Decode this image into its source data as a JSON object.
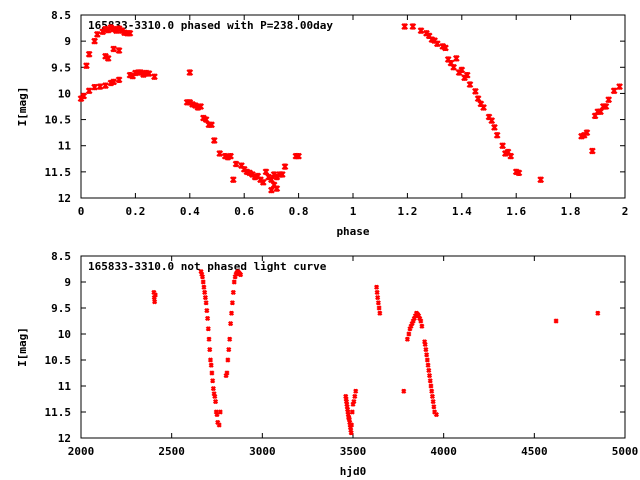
{
  "chart_data": [
    {
      "type": "scatter",
      "title": "165833-3310.0 phased with P=238.00day",
      "xlabel": "phase",
      "ylabel": "I[mag]",
      "xlim": [
        0,
        2
      ],
      "ylim": [
        8.5,
        12
      ],
      "y_inverted": true,
      "x_ticks": [
        "0",
        "0.2",
        "0.4",
        "0.6",
        "0.8",
        "1",
        "1.2",
        "1.4",
        "1.6",
        "1.8",
        "2"
      ],
      "y_ticks": [
        "8.5",
        "9",
        "9.5",
        "10",
        "10.5",
        "11",
        "11.5",
        "12"
      ],
      "marker_color": "#ff0000",
      "series": [
        {
          "x": [
            0.0,
            0.01,
            0.02,
            0.03,
            0.05,
            0.06,
            0.08,
            0.09,
            0.1,
            0.11,
            0.12,
            0.13,
            0.14,
            0.15,
            0.16,
            0.17,
            0.18,
            0.09,
            0.1,
            0.12,
            0.14,
            0.03,
            0.05,
            0.07,
            0.09,
            0.11,
            0.12,
            0.14,
            0.18,
            0.19,
            0.2,
            0.21,
            0.22,
            0.23,
            0.24,
            0.25,
            0.27,
            0.39,
            0.4,
            0.4,
            0.41,
            0.42,
            0.43,
            0.44,
            0.45,
            0.46,
            0.47,
            0.48,
            0.49,
            0.51,
            0.53,
            0.54,
            0.55,
            0.56,
            0.57,
            0.59,
            0.6,
            0.61,
            0.62,
            0.63,
            0.64,
            0.65,
            0.66,
            0.67,
            0.68,
            0.69,
            0.7,
            0.7,
            0.71,
            0.71,
            0.72,
            0.72,
            0.73,
            0.74,
            0.75,
            0.79,
            0.8,
            1.19,
            1.22,
            1.25,
            1.27,
            1.28,
            1.29,
            1.3,
            1.31,
            1.33,
            1.34,
            1.35,
            1.36,
            1.37,
            1.38,
            1.39,
            1.4,
            1.41,
            1.42,
            1.43,
            1.45,
            1.46,
            1.47,
            1.48,
            1.5,
            1.51,
            1.52,
            1.53,
            1.55,
            1.56,
            1.57,
            1.58,
            1.6,
            1.61,
            1.69,
            1.84,
            1.85,
            1.86,
            1.88,
            1.89,
            1.9,
            1.91,
            1.92,
            1.93,
            1.94,
            1.96,
            1.98
          ],
          "y": [
            10.1,
            10.05,
            9.47,
            9.25,
            9.0,
            8.87,
            8.82,
            8.77,
            8.79,
            8.74,
            8.77,
            8.8,
            8.76,
            8.8,
            8.84,
            8.85,
            8.85,
            9.29,
            9.33,
            9.15,
            9.18,
            9.95,
            9.88,
            9.87,
            9.85,
            9.8,
            9.78,
            9.74,
            9.65,
            9.67,
            9.61,
            9.6,
            9.6,
            9.64,
            9.61,
            9.62,
            9.68,
            10.17,
            10.17,
            9.6,
            10.21,
            10.23,
            10.27,
            10.25,
            10.47,
            10.5,
            10.6,
            10.6,
            10.9,
            11.15,
            11.2,
            11.22,
            11.2,
            11.65,
            11.35,
            11.38,
            11.45,
            11.5,
            11.52,
            11.55,
            11.6,
            11.58,
            11.65,
            11.7,
            11.5,
            11.6,
            11.85,
            11.65,
            11.75,
            11.55,
            11.6,
            11.82,
            11.55,
            11.55,
            11.4,
            11.2,
            11.2,
            8.72,
            8.72,
            8.8,
            8.85,
            8.9,
            8.97,
            8.99,
            9.05,
            9.1,
            9.13,
            9.35,
            9.42,
            9.5,
            9.33,
            9.6,
            9.55,
            9.7,
            9.65,
            9.83,
            9.96,
            10.1,
            10.2,
            10.27,
            10.45,
            10.52,
            10.65,
            10.8,
            11.0,
            11.15,
            11.12,
            11.2,
            11.5,
            11.52,
            11.65,
            10.82,
            10.8,
            10.75,
            11.1,
            10.43,
            10.35,
            10.35,
            10.25,
            10.25,
            10.12,
            9.95,
            9.87
          ]
        }
      ]
    },
    {
      "type": "scatter",
      "title": "165833-3310.0 not phased light curve",
      "xlabel": "hjd0",
      "ylabel": "I[mag]",
      "xlim": [
        2000,
        5000
      ],
      "ylim": [
        8.5,
        12
      ],
      "y_inverted": true,
      "x_ticks": [
        "2000",
        "2500",
        "3000",
        "3500",
        "4000",
        "4500",
        "5000"
      ],
      "y_ticks": [
        "8.5",
        "9",
        "9.5",
        "10",
        "10.5",
        "11",
        "11.5",
        "12"
      ],
      "marker_color": "#ff0000",
      "series": [
        {
          "x": [
            2402,
            2404,
            2406,
            2410,
            2662,
            2666,
            2670,
            2674,
            2678,
            2682,
            2686,
            2690,
            2694,
            2698,
            2702,
            2706,
            2710,
            2714,
            2718,
            2722,
            2726,
            2730,
            2734,
            2738,
            2742,
            2746,
            2750,
            2754,
            2762,
            2768,
            2800,
            2805,
            2810,
            2815,
            2820,
            2825,
            2830,
            2835,
            2840,
            2845,
            2850,
            2855,
            2860,
            2865,
            2870,
            2875,
            2880,
            3460,
            3462,
            3464,
            3466,
            3468,
            3470,
            3472,
            3474,
            3476,
            3478,
            3480,
            3482,
            3484,
            3486,
            3488,
            3490,
            3492,
            3496,
            3500,
            3505,
            3510,
            3515,
            3630,
            3633,
            3636,
            3640,
            3644,
            3648,
            3780,
            3800,
            3808,
            3814,
            3820,
            3826,
            3832,
            3838,
            3844,
            3850,
            3856,
            3862,
            3868,
            3874,
            3880,
            3895,
            3898,
            3902,
            3906,
            3910,
            3914,
            3918,
            3922,
            3926,
            3930,
            3934,
            3938,
            3942,
            3946,
            3950,
            3960,
            4620,
            4850
          ],
          "y": [
            9.2,
            9.3,
            9.38,
            9.25,
            8.8,
            8.85,
            8.9,
            9.0,
            9.1,
            9.2,
            9.3,
            9.4,
            9.55,
            9.7,
            9.9,
            10.1,
            10.3,
            10.5,
            10.6,
            10.75,
            10.9,
            11.05,
            11.15,
            11.2,
            11.3,
            11.5,
            11.55,
            11.7,
            11.75,
            11.5,
            10.8,
            10.75,
            10.5,
            10.3,
            10.1,
            9.8,
            9.6,
            9.4,
            9.2,
            9.0,
            8.9,
            8.85,
            8.82,
            8.8,
            8.82,
            8.84,
            8.86,
            11.2,
            11.25,
            11.3,
            11.35,
            11.4,
            11.45,
            11.5,
            11.55,
            11.6,
            11.62,
            11.65,
            11.7,
            11.75,
            11.8,
            11.85,
            11.9,
            11.75,
            11.5,
            11.35,
            11.3,
            11.2,
            11.1,
            9.1,
            9.2,
            9.3,
            9.4,
            9.5,
            9.6,
            11.1,
            10.1,
            10.0,
            9.9,
            9.85,
            9.8,
            9.75,
            9.7,
            9.65,
            9.6,
            9.62,
            9.65,
            9.7,
            9.75,
            9.85,
            10.15,
            10.2,
            10.3,
            10.4,
            10.5,
            10.6,
            10.7,
            10.8,
            10.9,
            11.0,
            11.1,
            11.2,
            11.3,
            11.4,
            11.5,
            11.55,
            9.75,
            9.6
          ]
        }
      ]
    }
  ]
}
